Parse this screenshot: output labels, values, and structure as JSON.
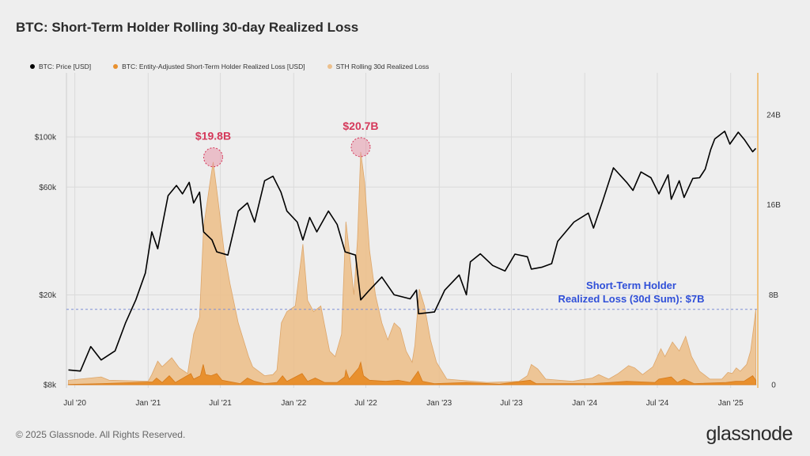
{
  "title": "BTC: Short-Term Holder Rolling 30-day Realized Loss",
  "legend": [
    {
      "label": "BTC: Price [USD]",
      "color": "#000000"
    },
    {
      "label": "BTC: Entity-Adjusted Short-Term Holder Realized Loss [USD]",
      "color": "#e8902e"
    },
    {
      "label": "STH Rolling 30d Realized Loss",
      "color": "#ecc08c"
    }
  ],
  "footer": "© 2025 Glassnode. All Rights Reserved.",
  "logo": "glassnode",
  "chart_data": {
    "type": "area",
    "x_axis": {
      "ticks": [
        "Jul '20",
        "Jan '21",
        "Jul '21",
        "Jan '22",
        "Jul '22",
        "Jan '23",
        "Jul '23",
        "Jan '24",
        "Jul '24",
        "Jan '25"
      ],
      "tick_dates": [
        "2020-07-01",
        "2021-01-01",
        "2021-07-01",
        "2022-01-01",
        "2022-07-01",
        "2023-01-01",
        "2023-07-01",
        "2024-01-01",
        "2024-07-01",
        "2025-01-01"
      ]
    },
    "y_left": {
      "scale": "log",
      "ticks": [
        "$8k",
        "$20k",
        "$60k",
        "$100k"
      ],
      "tick_values": [
        8000,
        20000,
        60000,
        100000
      ],
      "range": [
        7000,
        300000
      ]
    },
    "y_right": {
      "scale": "linear",
      "ticks": [
        "0",
        "8B",
        "16B",
        "24B"
      ],
      "tick_values": [
        0,
        8,
        16,
        24
      ],
      "range": [
        0,
        28
      ]
    },
    "series": [
      {
        "name": "BTC: Price [USD]",
        "axis": "left",
        "color": "#000000",
        "points": [
          [
            "2020-06-15",
            9300
          ],
          [
            "2020-07-15",
            9200
          ],
          [
            "2020-08-10",
            11800
          ],
          [
            "2020-09-05",
            10300
          ],
          [
            "2020-10-10",
            11300
          ],
          [
            "2020-11-05",
            15000
          ],
          [
            "2020-12-01",
            19000
          ],
          [
            "2020-12-25",
            25000
          ],
          [
            "2021-01-10",
            38000
          ],
          [
            "2021-01-25",
            32000
          ],
          [
            "2021-02-20",
            55000
          ],
          [
            "2021-03-13",
            61000
          ],
          [
            "2021-03-28",
            56000
          ],
          [
            "2021-04-14",
            63000
          ],
          [
            "2021-04-25",
            51000
          ],
          [
            "2021-05-10",
            57000
          ],
          [
            "2021-05-20",
            38000
          ],
          [
            "2021-06-10",
            35000
          ],
          [
            "2021-06-22",
            31000
          ],
          [
            "2021-07-20",
            30000
          ],
          [
            "2021-08-15",
            47000
          ],
          [
            "2021-09-07",
            51000
          ],
          [
            "2021-09-25",
            42000
          ],
          [
            "2021-10-20",
            64000
          ],
          [
            "2021-11-10",
            67000
          ],
          [
            "2021-11-30",
            57000
          ],
          [
            "2021-12-15",
            47000
          ],
          [
            "2022-01-10",
            42000
          ],
          [
            "2022-01-24",
            35000
          ],
          [
            "2022-02-10",
            44000
          ],
          [
            "2022-02-28",
            38000
          ],
          [
            "2022-03-29",
            47000
          ],
          [
            "2022-04-20",
            41000
          ],
          [
            "2022-05-10",
            31000
          ],
          [
            "2022-06-05",
            30000
          ],
          [
            "2022-06-18",
            19000
          ],
          [
            "2022-07-10",
            21000
          ],
          [
            "2022-08-10",
            24000
          ],
          [
            "2022-09-10",
            20000
          ],
          [
            "2022-10-20",
            19200
          ],
          [
            "2022-11-05",
            21000
          ],
          [
            "2022-11-10",
            16500
          ],
          [
            "2022-12-20",
            16800
          ],
          [
            "2023-01-15",
            21000
          ],
          [
            "2023-02-20",
            24500
          ],
          [
            "2023-03-10",
            20000
          ],
          [
            "2023-03-20",
            28000
          ],
          [
            "2023-04-14",
            30400
          ],
          [
            "2023-05-15",
            27000
          ],
          [
            "2023-06-15",
            25500
          ],
          [
            "2023-07-10",
            30300
          ],
          [
            "2023-08-10",
            29500
          ],
          [
            "2023-08-20",
            26000
          ],
          [
            "2023-09-15",
            26500
          ],
          [
            "2023-10-10",
            27500
          ],
          [
            "2023-10-25",
            34500
          ],
          [
            "2023-12-05",
            42000
          ],
          [
            "2024-01-10",
            46000
          ],
          [
            "2024-01-23",
            39500
          ],
          [
            "2024-02-15",
            52000
          ],
          [
            "2024-03-13",
            73000
          ],
          [
            "2024-04-15",
            63000
          ],
          [
            "2024-05-01",
            58000
          ],
          [
            "2024-05-21",
            70000
          ],
          [
            "2024-06-15",
            66000
          ],
          [
            "2024-07-05",
            56000
          ],
          [
            "2024-07-28",
            68000
          ],
          [
            "2024-08-05",
            53000
          ],
          [
            "2024-08-25",
            64000
          ],
          [
            "2024-09-06",
            54000
          ],
          [
            "2024-09-28",
            65500
          ],
          [
            "2024-10-15",
            66000
          ],
          [
            "2024-10-29",
            72000
          ],
          [
            "2024-11-12",
            88000
          ],
          [
            "2024-11-22",
            98000
          ],
          [
            "2024-12-17",
            106000
          ],
          [
            "2024-12-30",
            93000
          ],
          [
            "2025-01-20",
            105000
          ],
          [
            "2025-02-05",
            97000
          ],
          [
            "2025-02-25",
            86000
          ],
          [
            "2025-03-05",
            89000
          ]
        ]
      },
      {
        "name": "STH Rolling 30d Realized Loss",
        "axis": "right",
        "color": "#ecc08c",
        "unit": "B USD",
        "points": [
          [
            "2020-06-15",
            0.4
          ],
          [
            "2020-09-05",
            0.7
          ],
          [
            "2020-09-25",
            0.4
          ],
          [
            "2021-01-01",
            0.3
          ],
          [
            "2021-01-10",
            0.9
          ],
          [
            "2021-01-25",
            2.1
          ],
          [
            "2021-02-05",
            1.6
          ],
          [
            "2021-03-01",
            2.4
          ],
          [
            "2021-03-20",
            1.5
          ],
          [
            "2021-04-10",
            1.0
          ],
          [
            "2021-04-25",
            4.5
          ],
          [
            "2021-05-10",
            6.0
          ],
          [
            "2021-05-20",
            14.0
          ],
          [
            "2021-06-05",
            18.0
          ],
          [
            "2021-06-13",
            19.8
          ],
          [
            "2021-06-25",
            16.5
          ],
          [
            "2021-07-10",
            12.0
          ],
          [
            "2021-07-25",
            9.0
          ],
          [
            "2021-08-15",
            5.5
          ],
          [
            "2021-09-10",
            2.5
          ],
          [
            "2021-09-20",
            1.6
          ],
          [
            "2021-10-20",
            0.8
          ],
          [
            "2021-11-10",
            0.9
          ],
          [
            "2021-11-20",
            1.3
          ],
          [
            "2021-12-01",
            5.5
          ],
          [
            "2021-12-15",
            6.5
          ],
          [
            "2022-01-05",
            7.0
          ],
          [
            "2022-01-24",
            12.5
          ],
          [
            "2022-02-05",
            7.5
          ],
          [
            "2022-02-20",
            6.5
          ],
          [
            "2022-03-10",
            7.0
          ],
          [
            "2022-04-01",
            3.0
          ],
          [
            "2022-04-15",
            2.5
          ],
          [
            "2022-05-01",
            4.5
          ],
          [
            "2022-05-12",
            14.5
          ],
          [
            "2022-05-20",
            12.0
          ],
          [
            "2022-06-01",
            8.0
          ],
          [
            "2022-06-10",
            13.0
          ],
          [
            "2022-06-18",
            20.7
          ],
          [
            "2022-06-28",
            18.0
          ],
          [
            "2022-07-10",
            12.0
          ],
          [
            "2022-07-25",
            8.0
          ],
          [
            "2022-08-10",
            5.5
          ],
          [
            "2022-08-25",
            4.0
          ],
          [
            "2022-09-10",
            5.5
          ],
          [
            "2022-09-25",
            5.0
          ],
          [
            "2022-10-10",
            3.0
          ],
          [
            "2022-10-25",
            2.0
          ],
          [
            "2022-11-01",
            3.5
          ],
          [
            "2022-11-12",
            8.5
          ],
          [
            "2022-11-25",
            7.0
          ],
          [
            "2022-12-10",
            4.0
          ],
          [
            "2022-12-25",
            2.0
          ],
          [
            "2023-01-20",
            0.5
          ],
          [
            "2023-05-01",
            0.2
          ],
          [
            "2023-07-20",
            0.3
          ],
          [
            "2023-08-10",
            0.8
          ],
          [
            "2023-08-20",
            1.8
          ],
          [
            "2023-09-05",
            1.4
          ],
          [
            "2023-09-25",
            0.5
          ],
          [
            "2023-12-01",
            0.3
          ],
          [
            "2024-01-20",
            0.6
          ],
          [
            "2024-02-05",
            0.9
          ],
          [
            "2024-03-01",
            0.5
          ],
          [
            "2024-03-25",
            1.0
          ],
          [
            "2024-04-20",
            1.7
          ],
          [
            "2024-05-05",
            1.5
          ],
          [
            "2024-05-25",
            0.9
          ],
          [
            "2024-06-20",
            1.6
          ],
          [
            "2024-07-10",
            3.2
          ],
          [
            "2024-07-20",
            2.5
          ],
          [
            "2024-08-08",
            3.8
          ],
          [
            "2024-08-25",
            3.0
          ],
          [
            "2024-09-10",
            4.3
          ],
          [
            "2024-09-25",
            2.5
          ],
          [
            "2024-10-15",
            1.2
          ],
          [
            "2024-11-10",
            0.5
          ],
          [
            "2024-12-10",
            0.5
          ],
          [
            "2024-12-25",
            1.1
          ],
          [
            "2025-01-05",
            1.0
          ],
          [
            "2025-01-15",
            1.5
          ],
          [
            "2025-01-25",
            1.2
          ],
          [
            "2025-02-10",
            1.8
          ],
          [
            "2025-02-20",
            3.0
          ],
          [
            "2025-03-01",
            5.5
          ],
          [
            "2025-03-05",
            6.7
          ]
        ]
      },
      {
        "name": "BTC: Entity-Adjusted Short-Term Holder Realized Loss [USD]",
        "axis": "right",
        "color": "#e8902e",
        "unit": "B USD",
        "points": [
          [
            "2020-06-15",
            0.02
          ],
          [
            "2020-09-05",
            0.1
          ],
          [
            "2021-01-12",
            0.25
          ],
          [
            "2021-01-22",
            0.6
          ],
          [
            "2021-02-05",
            0.2
          ],
          [
            "2021-02-23",
            0.8
          ],
          [
            "2021-03-10",
            0.2
          ],
          [
            "2021-04-18",
            1.0
          ],
          [
            "2021-04-25",
            0.5
          ],
          [
            "2021-05-12",
            0.8
          ],
          [
            "2021-05-19",
            1.8
          ],
          [
            "2021-05-25",
            0.9
          ],
          [
            "2021-06-08",
            0.8
          ],
          [
            "2021-06-22",
            1.0
          ],
          [
            "2021-07-05",
            0.4
          ],
          [
            "2021-07-20",
            0.3
          ],
          [
            "2021-08-20",
            0.1
          ],
          [
            "2021-09-07",
            0.6
          ],
          [
            "2021-09-25",
            0.3
          ],
          [
            "2021-10-20",
            0.1
          ],
          [
            "2021-11-20",
            0.2
          ],
          [
            "2021-12-04",
            0.8
          ],
          [
            "2021-12-15",
            0.3
          ],
          [
            "2022-01-22",
            1.0
          ],
          [
            "2022-02-05",
            0.3
          ],
          [
            "2022-02-24",
            0.6
          ],
          [
            "2022-03-20",
            0.2
          ],
          [
            "2022-04-20",
            0.2
          ],
          [
            "2022-05-09",
            0.7
          ],
          [
            "2022-05-12",
            1.3
          ],
          [
            "2022-05-20",
            0.5
          ],
          [
            "2022-06-13",
            1.5
          ],
          [
            "2022-06-18",
            2.0
          ],
          [
            "2022-06-25",
            0.8
          ],
          [
            "2022-07-10",
            0.4
          ],
          [
            "2022-08-20",
            0.3
          ],
          [
            "2022-09-20",
            0.4
          ],
          [
            "2022-10-20",
            0.2
          ],
          [
            "2022-11-09",
            1.2
          ],
          [
            "2022-11-20",
            0.3
          ],
          [
            "2022-12-20",
            0.1
          ],
          [
            "2023-03-10",
            0.2
          ],
          [
            "2023-06-01",
            0.05
          ],
          [
            "2023-08-17",
            0.4
          ],
          [
            "2023-09-01",
            0.1
          ],
          [
            "2024-01-20",
            0.1
          ],
          [
            "2024-04-15",
            0.3
          ],
          [
            "2024-06-25",
            0.2
          ],
          [
            "2024-07-05",
            0.5
          ],
          [
            "2024-08-05",
            0.7
          ],
          [
            "2024-08-20",
            0.2
          ],
          [
            "2024-09-06",
            0.5
          ],
          [
            "2024-10-01",
            0.1
          ],
          [
            "2024-12-20",
            0.2
          ],
          [
            "2025-01-13",
            0.3
          ],
          [
            "2025-02-03",
            0.3
          ],
          [
            "2025-02-25",
            0.8
          ],
          [
            "2025-03-05",
            0.4
          ]
        ]
      }
    ],
    "annotations": {
      "peaks": [
        {
          "label": "$19.8B",
          "date": "2021-06-13",
          "value": 19.8
        },
        {
          "label": "$20.7B",
          "date": "2022-06-18",
          "value": 20.7
        }
      ],
      "reference_line": {
        "axis": "right",
        "value": 6.7,
        "text_line1": "Short-Term Holder",
        "text_line2": "Realized Loss (30d Sum): $7B"
      }
    },
    "grid": true
  }
}
